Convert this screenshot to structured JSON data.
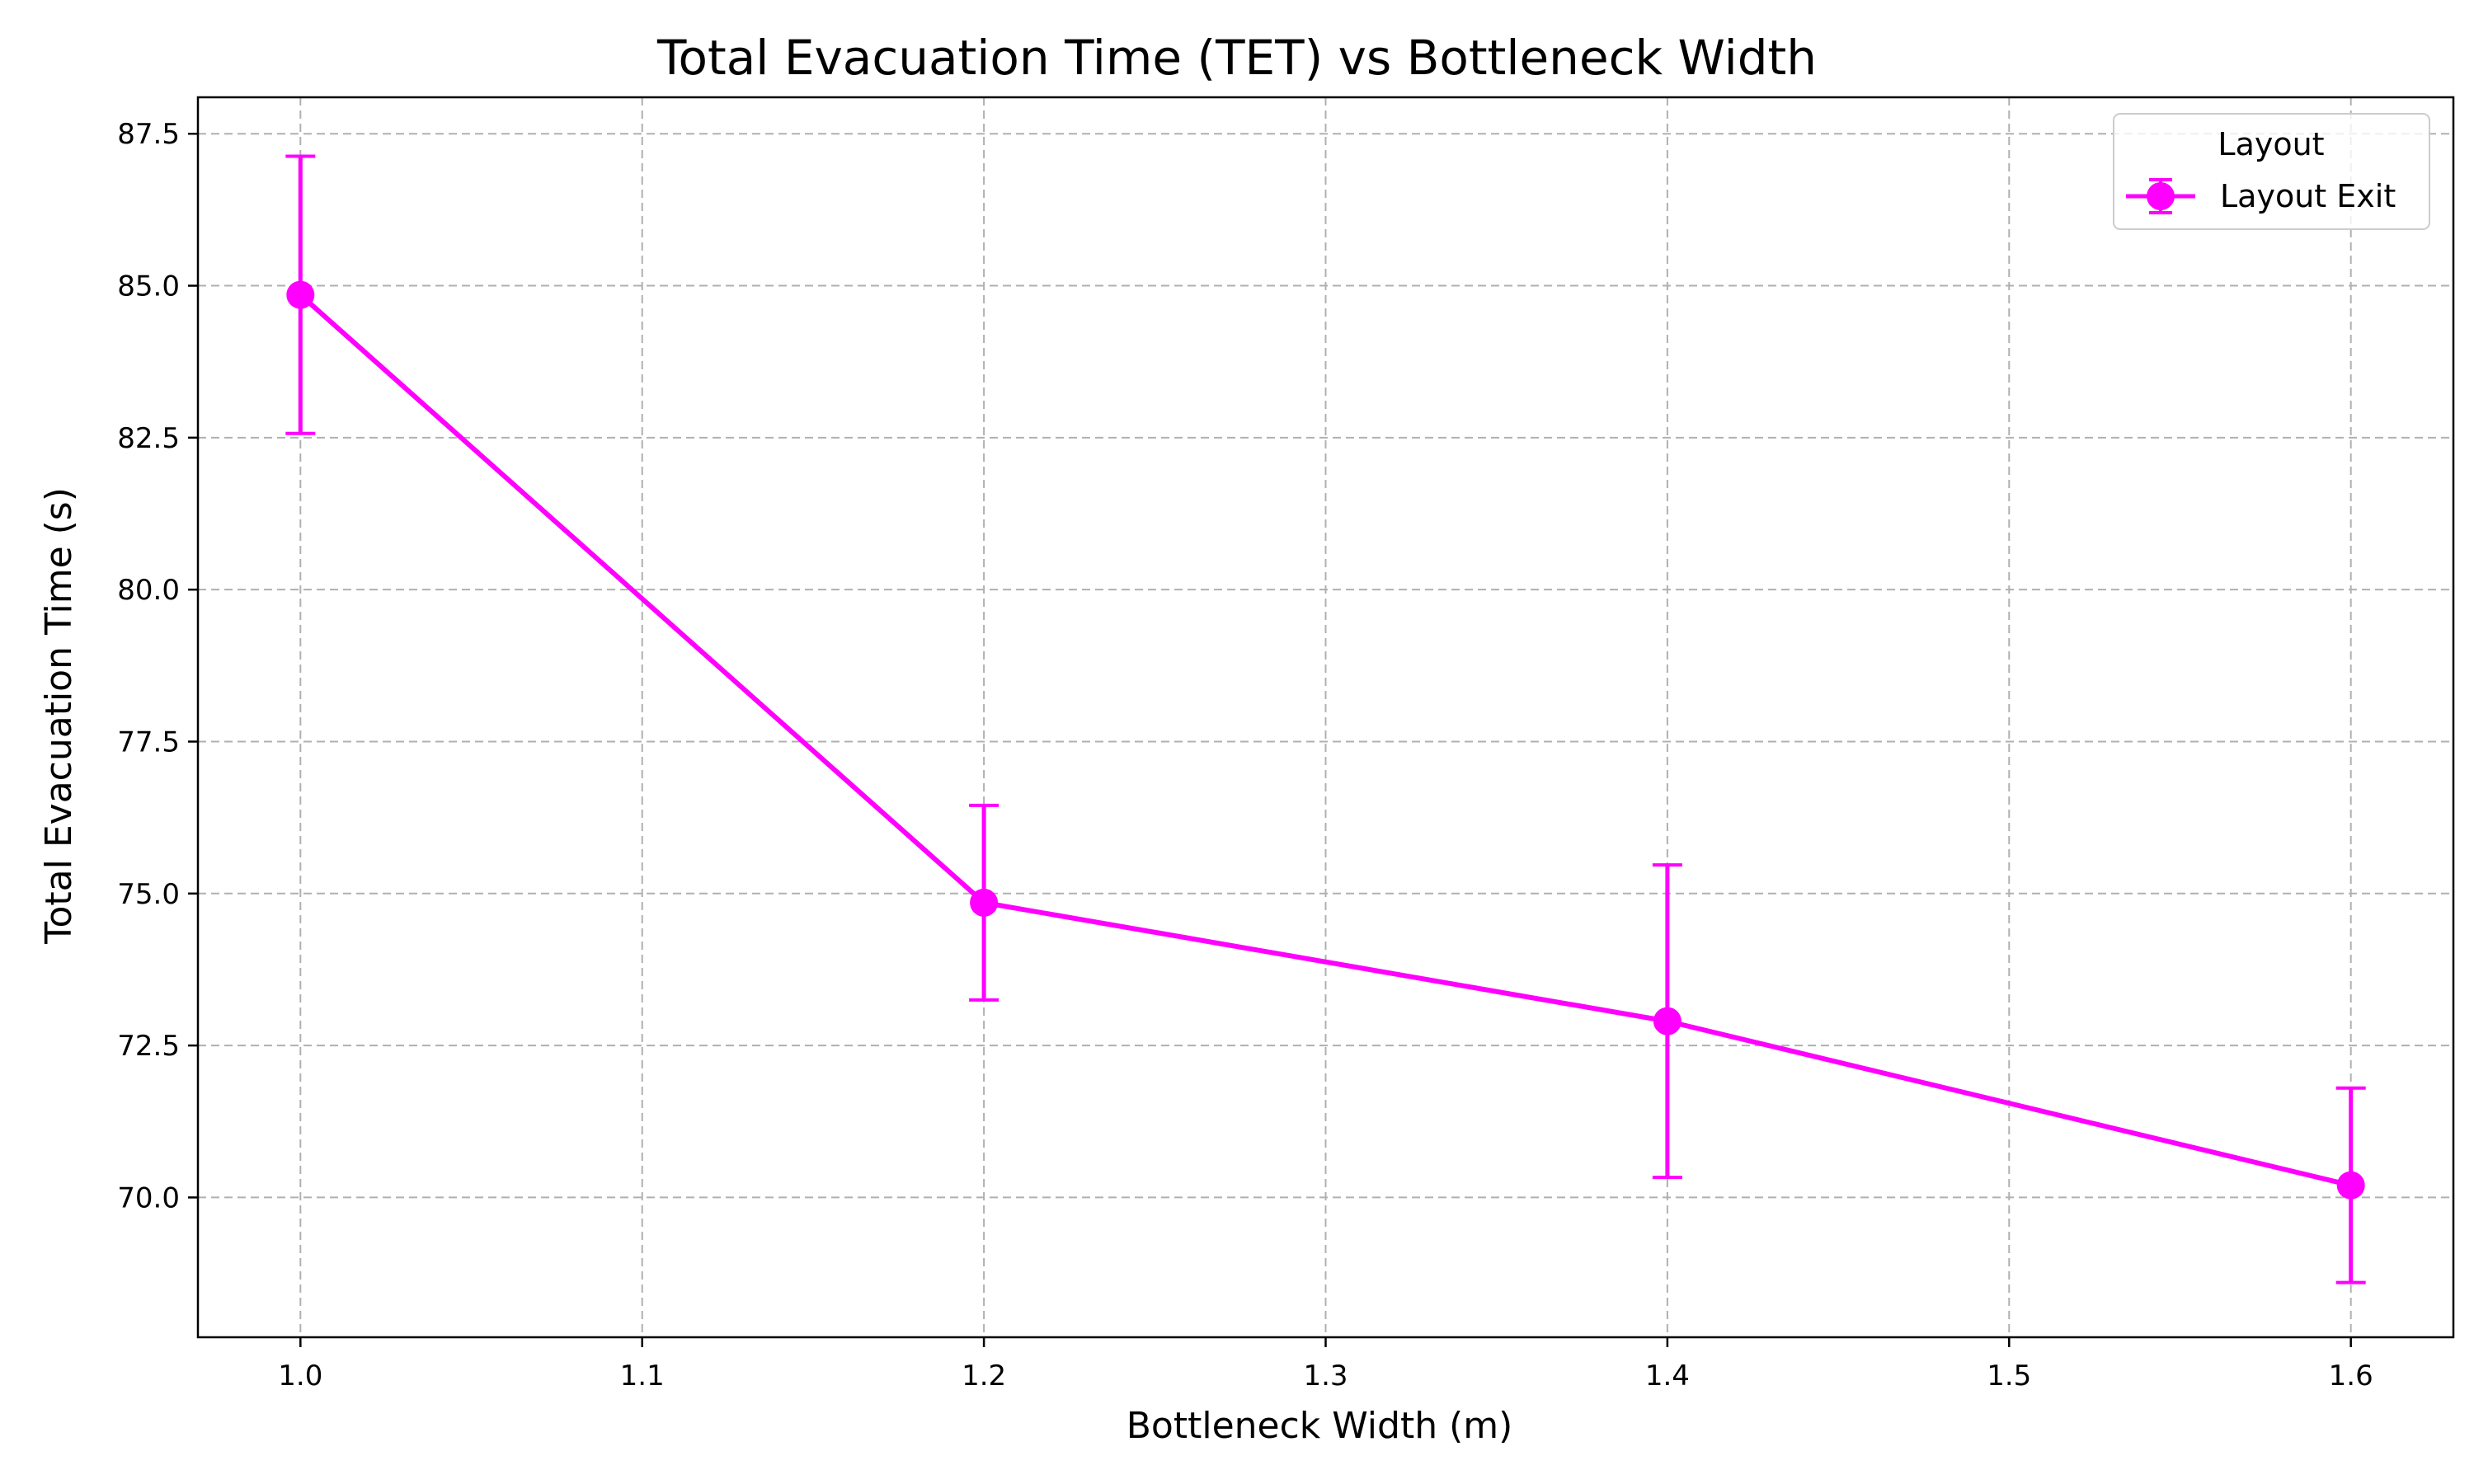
{
  "chart_data": {
    "type": "line",
    "title": "Total Evacuation Time (TET) vs Bottleneck Width",
    "xlabel": "Bottleneck Width (m)",
    "ylabel": "Total Evacuation Time (s)",
    "xlim": [
      0.97,
      1.63
    ],
    "ylim": [
      67.7,
      88.1
    ],
    "xticks": [
      1.0,
      1.1,
      1.2,
      1.3,
      1.4,
      1.5,
      1.6
    ],
    "xtick_labels": [
      "1.0",
      "1.1",
      "1.2",
      "1.3",
      "1.4",
      "1.5",
      "1.6"
    ],
    "yticks": [
      70.0,
      72.5,
      75.0,
      77.5,
      80.0,
      82.5,
      85.0,
      87.5
    ],
    "ytick_labels": [
      "70.0",
      "72.5",
      "75.0",
      "77.5",
      "80.0",
      "82.5",
      "85.0",
      "87.5"
    ],
    "grid": true,
    "legend": {
      "title": "Layout",
      "position": "top-right"
    },
    "series": [
      {
        "name": "Layout Exit",
        "color": "#ff00ff",
        "x": [
          1.0,
          1.2,
          1.4,
          1.6
        ],
        "y": [
          84.85,
          74.85,
          72.9,
          70.2
        ],
        "yerr": [
          2.28,
          1.6,
          2.57,
          1.6
        ]
      }
    ]
  }
}
